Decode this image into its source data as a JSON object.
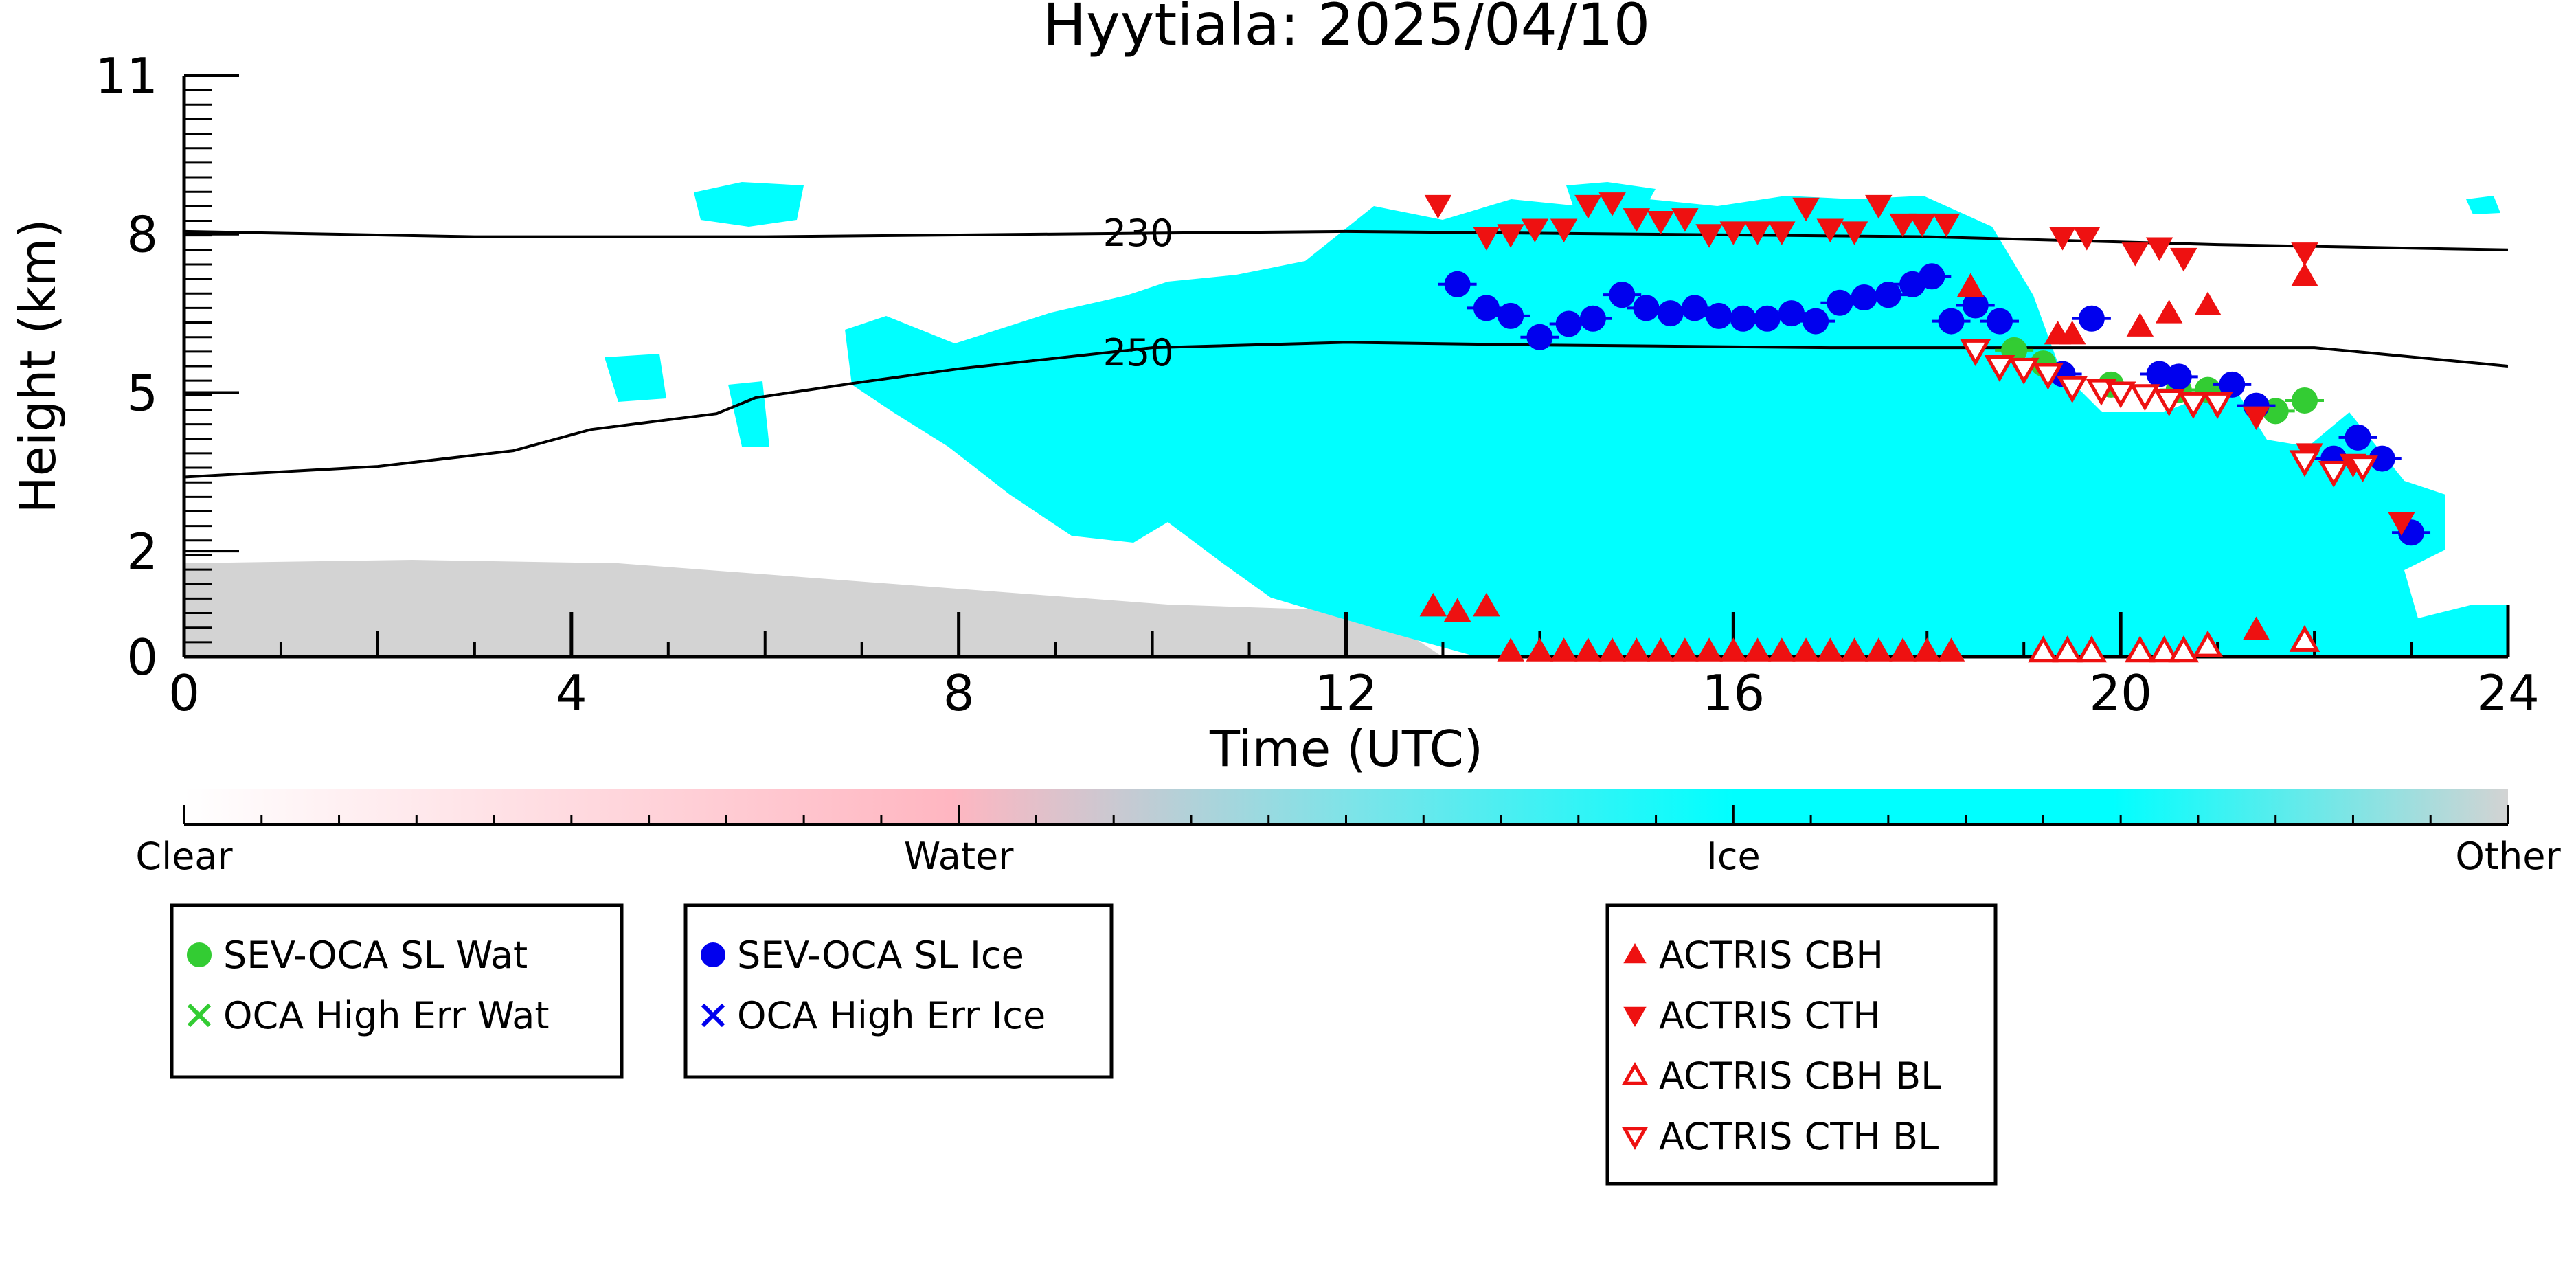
{
  "chart_data": {
    "type": "scatter",
    "title": "Hyytiala: 2025/04/10",
    "xlabel": "Time (UTC)",
    "ylabel": "Height (km)",
    "xlim": [
      0,
      24
    ],
    "ylim": [
      0,
      11
    ],
    "x_ticks": [
      0,
      4,
      8,
      12,
      16,
      20,
      24
    ],
    "y_ticks": [
      0,
      2,
      5,
      8,
      11
    ],
    "colorbar": {
      "labels": [
        "Clear",
        "Water",
        "Ice",
        "Other"
      ],
      "colors": [
        "#ffffff",
        "#ffb6c1",
        "#00ffff",
        "#d3d3d3"
      ]
    },
    "contours": [
      {
        "label": "230",
        "label_x": 9.5,
        "points": [
          [
            0,
            8.05
          ],
          [
            3,
            7.95
          ],
          [
            6,
            7.95
          ],
          [
            9,
            8.0
          ],
          [
            12,
            8.05
          ],
          [
            15,
            8.0
          ],
          [
            18,
            7.95
          ],
          [
            21,
            7.8
          ],
          [
            24,
            7.7
          ]
        ]
      },
      {
        "label": "250",
        "label_x": 9.5,
        "points": [
          [
            0,
            3.4
          ],
          [
            2,
            3.6
          ],
          [
            3.4,
            3.9
          ],
          [
            4.2,
            4.3
          ],
          [
            5.5,
            4.6
          ],
          [
            5.9,
            4.9
          ],
          [
            7,
            5.2
          ],
          [
            8,
            5.45
          ],
          [
            9,
            5.65
          ],
          [
            10,
            5.85
          ],
          [
            12,
            5.95
          ],
          [
            14,
            5.9
          ],
          [
            17,
            5.85
          ],
          [
            20,
            5.85
          ],
          [
            22,
            5.85
          ],
          [
            24,
            5.5
          ]
        ]
      }
    ],
    "series": [
      {
        "name": "SEV-OCA SL Wat",
        "color": "#33cc33",
        "marker": "circle",
        "points": [
          [
            18.9,
            5.8
          ],
          [
            19.2,
            5.55
          ],
          [
            19.9,
            5.15
          ],
          [
            20.6,
            5.05
          ],
          [
            20.9,
            5.05
          ],
          [
            21.6,
            4.65
          ],
          [
            21.9,
            4.85
          ]
        ]
      },
      {
        "name": "OCA High Err Wat",
        "color": "#33cc33",
        "marker": "cross",
        "points": []
      },
      {
        "name": "SEV-OCA SL Ice",
        "color": "#0000ee",
        "marker": "circle",
        "points": [
          [
            13.15,
            7.05
          ],
          [
            13.45,
            6.6
          ],
          [
            13.7,
            6.45
          ],
          [
            14.0,
            6.05
          ],
          [
            14.3,
            6.3
          ],
          [
            14.55,
            6.4
          ],
          [
            14.85,
            6.85
          ],
          [
            15.1,
            6.6
          ],
          [
            15.35,
            6.5
          ],
          [
            15.6,
            6.6
          ],
          [
            15.85,
            6.45
          ],
          [
            16.1,
            6.4
          ],
          [
            16.35,
            6.4
          ],
          [
            16.6,
            6.5
          ],
          [
            16.85,
            6.35
          ],
          [
            17.1,
            6.7
          ],
          [
            17.35,
            6.8
          ],
          [
            17.6,
            6.85
          ],
          [
            17.85,
            7.05
          ],
          [
            18.05,
            7.2
          ],
          [
            18.25,
            6.35
          ],
          [
            18.5,
            6.65
          ],
          [
            18.75,
            6.35
          ],
          [
            19.4,
            5.35
          ],
          [
            19.7,
            6.4
          ],
          [
            20.4,
            5.35
          ],
          [
            20.6,
            5.3
          ],
          [
            21.15,
            5.15
          ],
          [
            21.4,
            4.75
          ],
          [
            22.2,
            3.75
          ],
          [
            22.45,
            4.15
          ],
          [
            22.7,
            3.75
          ],
          [
            23.0,
            2.35
          ]
        ]
      },
      {
        "name": "OCA High Err Ice",
        "color": "#0000ee",
        "marker": "cross",
        "points": []
      },
      {
        "name": "ACTRIS CBH",
        "color": "#ee1111",
        "marker": "triangle-up",
        "filled": true,
        "points": [
          [
            12.9,
            0.95
          ],
          [
            13.15,
            0.85
          ],
          [
            13.45,
            0.95
          ],
          [
            13.7,
            0.1
          ],
          [
            14.0,
            0.1
          ],
          [
            14.25,
            0.1
          ],
          [
            14.5,
            0.1
          ],
          [
            14.75,
            0.1
          ],
          [
            15.0,
            0.1
          ],
          [
            15.25,
            0.1
          ],
          [
            15.5,
            0.1
          ],
          [
            15.75,
            0.1
          ],
          [
            16.0,
            0.1
          ],
          [
            16.25,
            0.1
          ],
          [
            16.5,
            0.1
          ],
          [
            16.75,
            0.1
          ],
          [
            17.0,
            0.1
          ],
          [
            17.25,
            0.1
          ],
          [
            17.5,
            0.1
          ],
          [
            17.75,
            0.1
          ],
          [
            18.0,
            0.1
          ],
          [
            18.25,
            0.1
          ],
          [
            18.45,
            7.0
          ],
          [
            19.35,
            6.1
          ],
          [
            19.5,
            6.1
          ],
          [
            20.2,
            6.25
          ],
          [
            20.5,
            6.5
          ],
          [
            20.9,
            6.65
          ],
          [
            21.4,
            0.5
          ],
          [
            21.9,
            7.2
          ]
        ]
      },
      {
        "name": "ACTRIS CTH",
        "color": "#ee1111",
        "marker": "triangle-down",
        "filled": true,
        "points": [
          [
            12.95,
            8.55
          ],
          [
            13.45,
            7.95
          ],
          [
            13.7,
            8.0
          ],
          [
            13.95,
            8.1
          ],
          [
            14.25,
            8.1
          ],
          [
            14.5,
            8.55
          ],
          [
            14.75,
            8.6
          ],
          [
            15.0,
            8.3
          ],
          [
            15.25,
            8.25
          ],
          [
            15.5,
            8.3
          ],
          [
            15.75,
            8.0
          ],
          [
            16.0,
            8.05
          ],
          [
            16.25,
            8.05
          ],
          [
            16.5,
            8.05
          ],
          [
            16.75,
            8.5
          ],
          [
            17.0,
            8.1
          ],
          [
            17.25,
            8.05
          ],
          [
            17.5,
            8.55
          ],
          [
            17.75,
            8.2
          ],
          [
            17.95,
            8.2
          ],
          [
            18.2,
            8.2
          ],
          [
            19.4,
            7.95
          ],
          [
            19.65,
            7.95
          ],
          [
            20.15,
            7.65
          ],
          [
            20.4,
            7.75
          ],
          [
            20.65,
            7.55
          ],
          [
            21.9,
            7.65
          ],
          [
            21.4,
            4.55
          ],
          [
            21.95,
            3.85
          ],
          [
            22.4,
            3.65
          ],
          [
            22.9,
            2.55
          ]
        ]
      },
      {
        "name": "ACTRIS CBH BL",
        "color": "#ee1111",
        "marker": "triangle-up",
        "filled": false,
        "points": [
          [
            19.2,
            0.1
          ],
          [
            19.45,
            0.1
          ],
          [
            19.7,
            0.1
          ],
          [
            20.2,
            0.1
          ],
          [
            20.45,
            0.1
          ],
          [
            20.65,
            0.1
          ],
          [
            20.9,
            0.2
          ],
          [
            21.9,
            0.3
          ]
        ]
      },
      {
        "name": "ACTRIS CTH BL",
        "color": "#ee1111",
        "marker": "triangle-down",
        "filled": false,
        "points": [
          [
            18.5,
            5.8
          ],
          [
            18.75,
            5.5
          ],
          [
            19.0,
            5.45
          ],
          [
            19.25,
            5.35
          ],
          [
            19.5,
            5.1
          ],
          [
            19.8,
            5.05
          ],
          [
            20.0,
            5.0
          ],
          [
            20.25,
            4.95
          ],
          [
            20.5,
            4.85
          ],
          [
            20.75,
            4.8
          ],
          [
            21.0,
            4.8
          ],
          [
            21.9,
            3.7
          ],
          [
            22.2,
            3.5
          ],
          [
            22.5,
            3.6
          ]
        ]
      }
    ],
    "legend": [
      {
        "labels": [
          "SEV-OCA SL Wat",
          "OCA High Err Wat"
        ]
      },
      {
        "labels": [
          "SEV-OCA SL Ice",
          "OCA High Err Ice"
        ]
      },
      {
        "labels": [
          "ACTRIS CBH",
          "ACTRIS CTH",
          "ACTRIS CBH BL",
          "ACTRIS CTH BL"
        ]
      }
    ],
    "legend_placement": "bottom",
    "grid": false
  }
}
